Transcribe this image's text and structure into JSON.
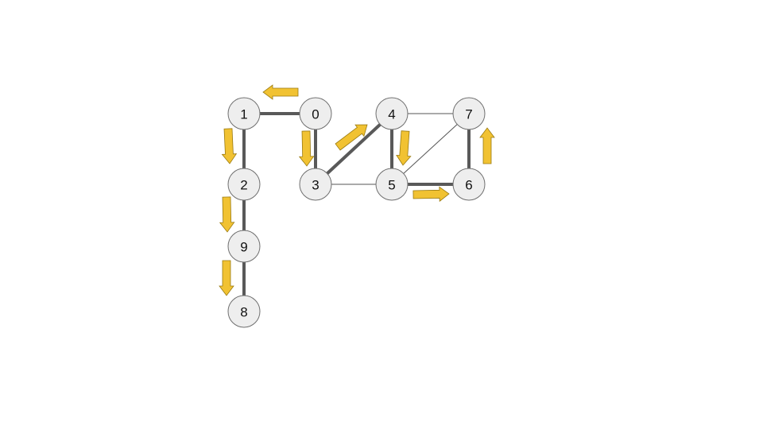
{
  "graph": {
    "nodes": [
      {
        "id": "0",
        "label": "0"
      },
      {
        "id": "1",
        "label": "1"
      },
      {
        "id": "2",
        "label": "2"
      },
      {
        "id": "3",
        "label": "3"
      },
      {
        "id": "4",
        "label": "4"
      },
      {
        "id": "5",
        "label": "5"
      },
      {
        "id": "6",
        "label": "6"
      },
      {
        "id": "7",
        "label": "7"
      },
      {
        "id": "8",
        "label": "8"
      },
      {
        "id": "9",
        "label": "9"
      }
    ],
    "edges": [
      {
        "from": "0",
        "to": "1",
        "traversed": true
      },
      {
        "from": "0",
        "to": "3",
        "traversed": true
      },
      {
        "from": "1",
        "to": "2",
        "traversed": true
      },
      {
        "from": "2",
        "to": "9",
        "traversed": true
      },
      {
        "from": "9",
        "to": "8",
        "traversed": true
      },
      {
        "from": "3",
        "to": "4",
        "traversed": true
      },
      {
        "from": "3",
        "to": "5",
        "traversed": false
      },
      {
        "from": "4",
        "to": "5",
        "traversed": true
      },
      {
        "from": "4",
        "to": "7",
        "traversed": false
      },
      {
        "from": "5",
        "to": "7",
        "traversed": false
      },
      {
        "from": "5",
        "to": "6",
        "traversed": true
      },
      {
        "from": "6",
        "to": "7",
        "traversed": true
      }
    ],
    "traversal_arrows": [
      {
        "from": "0",
        "to": "1"
      },
      {
        "from": "1",
        "to": "2"
      },
      {
        "from": "2",
        "to": "9"
      },
      {
        "from": "9",
        "to": "8"
      },
      {
        "from": "0",
        "to": "3"
      },
      {
        "from": "3",
        "to": "4"
      },
      {
        "from": "4",
        "to": "5"
      },
      {
        "from": "5",
        "to": "6"
      },
      {
        "from": "6",
        "to": "7"
      }
    ],
    "colors": {
      "node_fill": "#eeeeee",
      "node_stroke": "#6f6f6f",
      "edge": "#595959",
      "arrow_fill": "#f1c232",
      "arrow_stroke": "#9a7a10"
    }
  }
}
